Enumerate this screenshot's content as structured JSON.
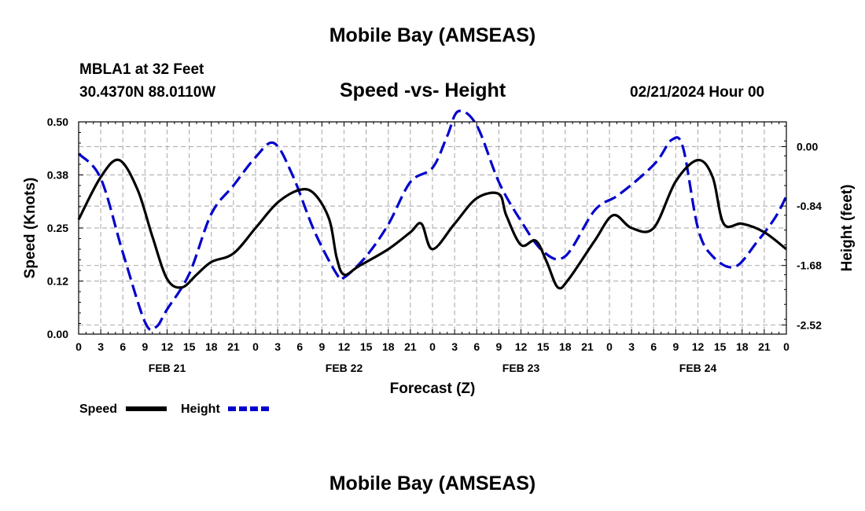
{
  "header": {
    "title": "Mobile Bay (AMSEAS)",
    "station": "MBLA1 at 32 Feet",
    "coordinates": "30.4370N  88.0110W",
    "chart_title": "Speed -vs- Height",
    "datetime": "02/21/2024 Hour 00"
  },
  "footer": {
    "title": "Mobile Bay (AMSEAS)"
  },
  "colors": {
    "speed": "#000000",
    "height": "#0000cc",
    "grid": "#b4b4b4"
  },
  "chart_data": {
    "type": "line",
    "title": "Speed -vs- Height",
    "xlabel": "Forecast (Z)",
    "ylabel": "Speed (Knots)",
    "y2label": "Height (feet)",
    "x_range": [
      0,
      96
    ],
    "x_tick_step": 3,
    "x_tick_labels": [
      "0",
      "3",
      "6",
      "9",
      "12",
      "15",
      "18",
      "21",
      "0",
      "3",
      "6",
      "9",
      "12",
      "15",
      "18",
      "21",
      "0",
      "3",
      "6",
      "9",
      "12",
      "15",
      "18",
      "21",
      "0",
      "3",
      "6",
      "9",
      "12",
      "15",
      "18",
      "21",
      "0"
    ],
    "day_labels": [
      {
        "label": "FEB 21",
        "x": 12
      },
      {
        "label": "FEB 22",
        "x": 36
      },
      {
        "label": "FEB 23",
        "x": 60
      },
      {
        "label": "FEB 24",
        "x": 84
      }
    ],
    "ylim": [
      0,
      0.5
    ],
    "y_ticks": [
      0.0,
      0.125,
      0.25,
      0.375,
      0.5
    ],
    "y_tick_labels": [
      "0.00",
      "0.12",
      "0.25",
      "0.38",
      "0.50"
    ],
    "y2lim": [
      -2.65,
      0.35
    ],
    "y2_ticks": [
      0.0,
      -0.84,
      -1.68,
      -2.52
    ],
    "y2_tick_labels": [
      "0.00",
      "-0.84",
      "-1.68",
      "-2.52"
    ],
    "legend": [
      "Speed",
      "Height"
    ],
    "series": [
      {
        "name": "Speed",
        "axis": "left",
        "style": "solid",
        "x": [
          0,
          3,
          5.5,
          8,
          10,
          12,
          14,
          16,
          18,
          21,
          24,
          27,
          30,
          32,
          34,
          35,
          36,
          38,
          42,
          45,
          46.5,
          48,
          51,
          54,
          57,
          58,
          60,
          62,
          63.5,
          65,
          66.5,
          70,
          72.5,
          75,
          78,
          81,
          84,
          86,
          87.5,
          90,
          93,
          96
        ],
        "values": [
          0.27,
          0.37,
          0.41,
          0.34,
          0.23,
          0.13,
          0.11,
          0.14,
          0.17,
          0.19,
          0.25,
          0.31,
          0.34,
          0.33,
          0.27,
          0.18,
          0.14,
          0.16,
          0.2,
          0.24,
          0.26,
          0.2,
          0.26,
          0.32,
          0.33,
          0.28,
          0.21,
          0.22,
          0.17,
          0.11,
          0.13,
          0.22,
          0.28,
          0.25,
          0.25,
          0.36,
          0.41,
          0.37,
          0.26,
          0.26,
          0.24,
          0.2
        ]
      },
      {
        "name": "Height",
        "axis": "right",
        "style": "dashed",
        "x": [
          0,
          3,
          6,
          9,
          10.5,
          12,
          15,
          18,
          21,
          24,
          26.5,
          29,
          32,
          35,
          36,
          39,
          42,
          45,
          48,
          50,
          51.5,
          54,
          57,
          60,
          63,
          66,
          70,
          73,
          76,
          78.5,
          80.5,
          82,
          84,
          86,
          89,
          92,
          94.5,
          96
        ],
        "values": [
          -0.1,
          -0.45,
          -1.5,
          -2.48,
          -2.55,
          -2.3,
          -1.8,
          -0.95,
          -0.55,
          -0.15,
          0.05,
          -0.4,
          -1.2,
          -1.8,
          -1.85,
          -1.55,
          -1.1,
          -0.5,
          -0.3,
          0.15,
          0.5,
          0.3,
          -0.5,
          -1.05,
          -1.48,
          -1.55,
          -0.9,
          -0.7,
          -0.45,
          -0.2,
          0.1,
          -0.02,
          -1.15,
          -1.55,
          -1.7,
          -1.35,
          -1.0,
          -0.7
        ]
      }
    ]
  }
}
